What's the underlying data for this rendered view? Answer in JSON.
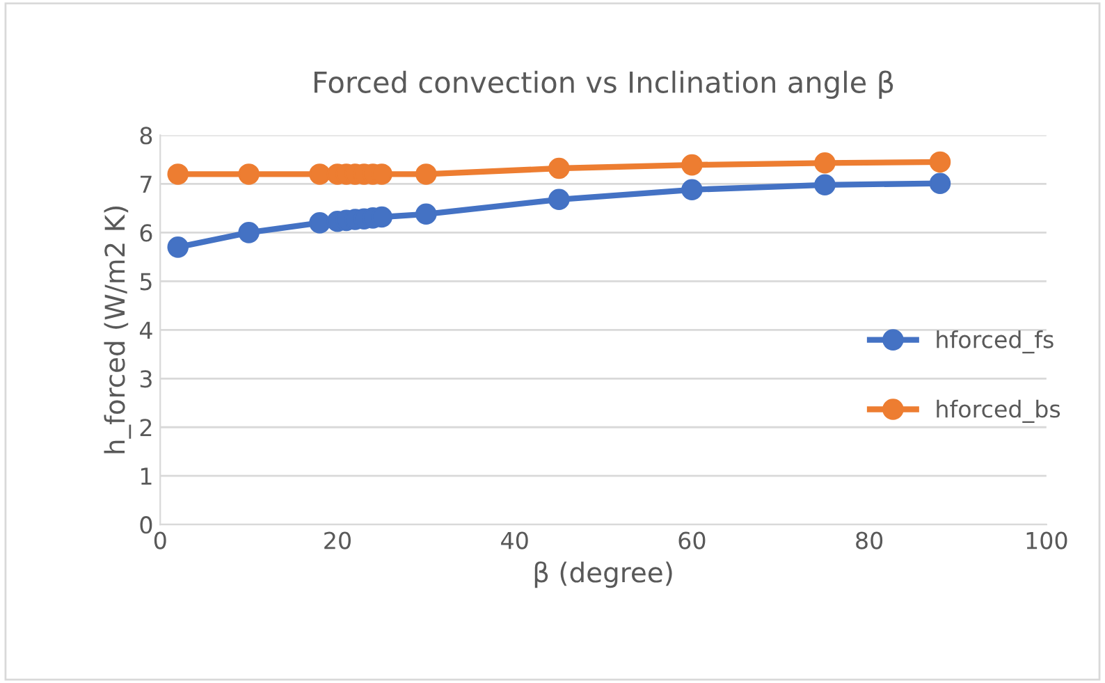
{
  "chart_data": {
    "type": "line",
    "title": "Forced convection vs Inclination angle β",
    "xlabel": "β (degree)",
    "ylabel": "h_forced (W/m2 K)",
    "x": [
      2,
      10,
      18,
      20,
      21,
      22,
      23,
      24,
      25,
      30,
      45,
      60,
      75,
      88
    ],
    "series": [
      {
        "name": "hforced_fs",
        "color": "#4472c4",
        "values": [
          5.7,
          6.0,
          6.2,
          6.23,
          6.25,
          6.27,
          6.28,
          6.3,
          6.32,
          6.38,
          6.68,
          6.88,
          6.98,
          7.01
        ]
      },
      {
        "name": "hforced_bs",
        "color": "#ed7d31",
        "values": [
          7.2,
          7.2,
          7.2,
          7.2,
          7.2,
          7.2,
          7.2,
          7.2,
          7.2,
          7.2,
          7.32,
          7.39,
          7.43,
          7.45
        ]
      }
    ],
    "xlim": [
      0,
      100
    ],
    "xticks": [
      0,
      20,
      40,
      60,
      80,
      100
    ],
    "ylim": [
      0,
      8
    ],
    "yticks": [
      0,
      1,
      2,
      3,
      4,
      5,
      6,
      7,
      8
    ],
    "grid": "y",
    "legend": "right",
    "marker": "circle",
    "line_style": "solid"
  }
}
